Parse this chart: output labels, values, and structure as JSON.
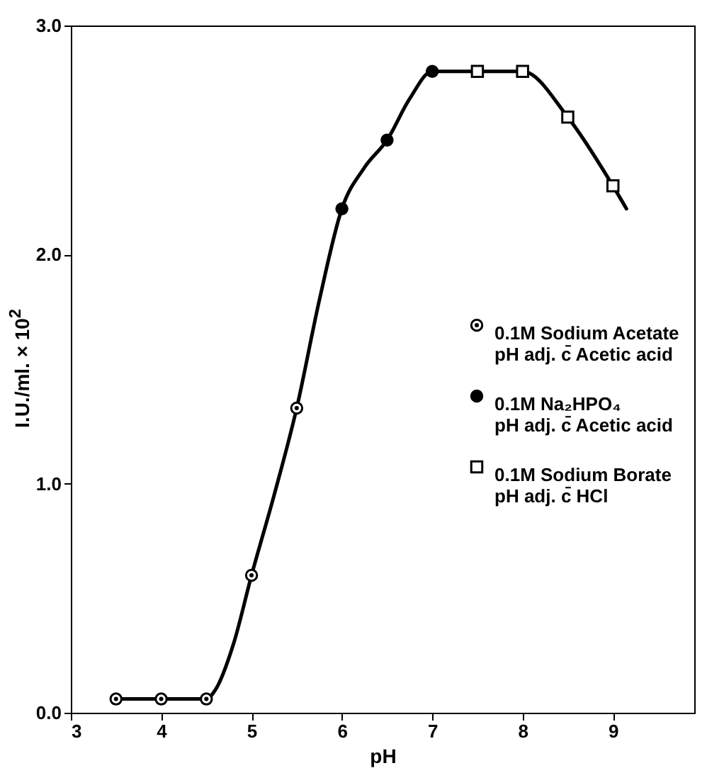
{
  "chart_data": {
    "type": "scatter",
    "xlabel": "pH",
    "ylabel": "I.U./ml. × 10$^{2}$",
    "xlim": [
      3,
      9.9
    ],
    "xticks": [
      3,
      4,
      5,
      6,
      7,
      8,
      9
    ],
    "ylim": [
      0,
      3
    ],
    "yticks": [
      {
        "value": 0,
        "label": "0.0"
      },
      {
        "value": 1,
        "label": "1.0"
      },
      {
        "value": 2,
        "label": "2.0"
      },
      {
        "value": 3,
        "label": "3.0"
      }
    ],
    "legend": "right",
    "grid": false,
    "series": [
      {
        "name": "0.1M Sodium Acetate\npH adj. c̄ Acetic acid",
        "color": "#000000",
        "marker": "circle-dot",
        "x": [
          3.5,
          4,
          4.5,
          5,
          5.5
        ],
        "values": [
          0.06,
          0.06,
          0.06,
          0.6,
          1.33
        ]
      },
      {
        "name": "0.1M Na₂HPO₄\npH adj. c̄ Acetic acid",
        "color": "#000000",
        "marker": "circle",
        "x": [
          6,
          6.5,
          7
        ],
        "values": [
          2.2,
          2.5,
          2.8
        ]
      },
      {
        "name": "0.1M Sodium Borate\npH adj. c̄ HCl",
        "color": "#000000",
        "marker": "square",
        "x": [
          7.5,
          8,
          8.5,
          9
        ],
        "values": [
          2.8,
          2.8,
          2.6,
          2.3
        ]
      },
      {
        "type": "line",
        "color": "#000000",
        "line_style": "solid",
        "x": [
          3.5,
          4.5,
          4.6,
          4.8,
          5,
          5.25,
          5.5,
          5.75,
          6,
          6.25,
          6.5,
          6.75,
          7,
          7.5,
          8,
          8.5,
          9,
          9.15
        ],
        "values": [
          0.06,
          0.06,
          0.1,
          0.3,
          0.6,
          0.95,
          1.33,
          1.8,
          2.2,
          2.38,
          2.5,
          2.68,
          2.8,
          2.8,
          2.8,
          2.6,
          2.3,
          2.2
        ]
      }
    ]
  }
}
